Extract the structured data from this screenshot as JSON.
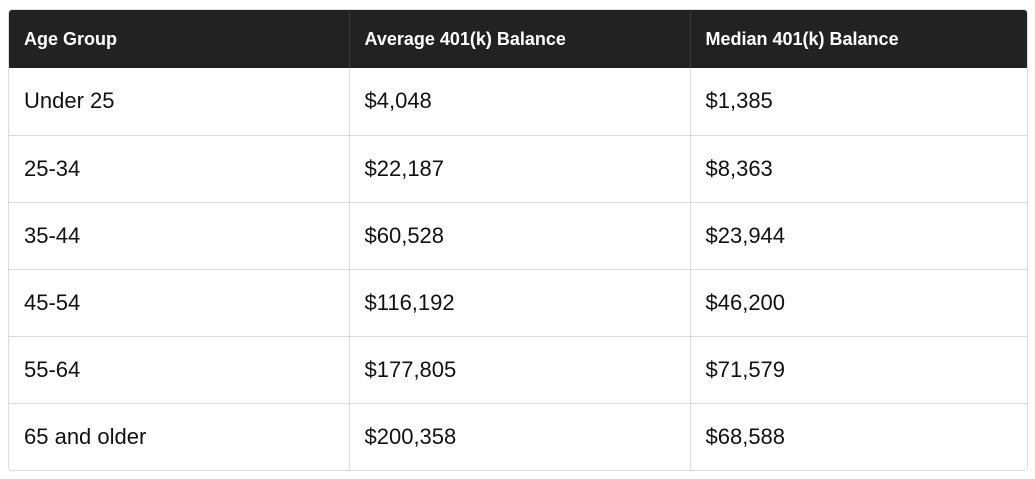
{
  "table": {
    "headers": [
      "Age Group",
      "Average 401(k) Balance",
      "Median 401(k) Balance"
    ],
    "rows": [
      [
        "Under 25",
        "$4,048",
        "$1,385"
      ],
      [
        "25-34",
        "$22,187",
        "$8,363"
      ],
      [
        "35-44",
        "$60,528",
        "$23,944"
      ],
      [
        "45-54",
        "$116,192",
        "$46,200"
      ],
      [
        "55-64",
        "$177,805",
        "$71,579"
      ],
      [
        "65 and older",
        "$200,358",
        "$68,588"
      ]
    ]
  },
  "colors": {
    "header_background": "#222222",
    "header_text": "#ffffff",
    "border": "#dcdcdc",
    "body_text": "#111111"
  }
}
